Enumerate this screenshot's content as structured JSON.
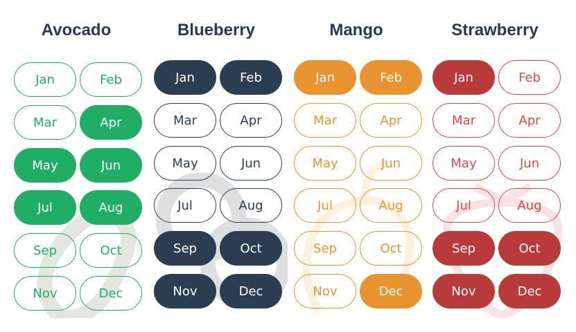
{
  "months": [
    "Jan",
    "Feb",
    "Mar",
    "Apr",
    "May",
    "Jun",
    "Jul",
    "Aug",
    "Sep",
    "Oct",
    "Nov",
    "Dec"
  ],
  "fruits": [
    {
      "name": "Avocado",
      "color": "#20ad65",
      "outline_text": "#20ad65",
      "in_season": [
        "Apr",
        "May",
        "Jun",
        "Jul",
        "Aug"
      ]
    },
    {
      "name": "Blueberry",
      "color": "#2b3d50",
      "outline_text": "#2b3d50",
      "in_season": [
        "Jan",
        "Feb",
        "Sep",
        "Oct",
        "Nov",
        "Dec"
      ]
    },
    {
      "name": "Mango",
      "color": "#e89431",
      "outline_text": "#e89431",
      "in_season": [
        "Jan",
        "Feb",
        "Dec"
      ]
    },
    {
      "name": "Strawberry",
      "color": "#b93a3a",
      "outline_text": "#e04848",
      "in_season": [
        "Jan",
        "Sep",
        "Oct",
        "Nov",
        "Dec"
      ]
    }
  ],
  "watermark_icons": [
    "avocado-icon",
    "blueberry-icon",
    "mango-icon",
    "strawberry-icon"
  ]
}
